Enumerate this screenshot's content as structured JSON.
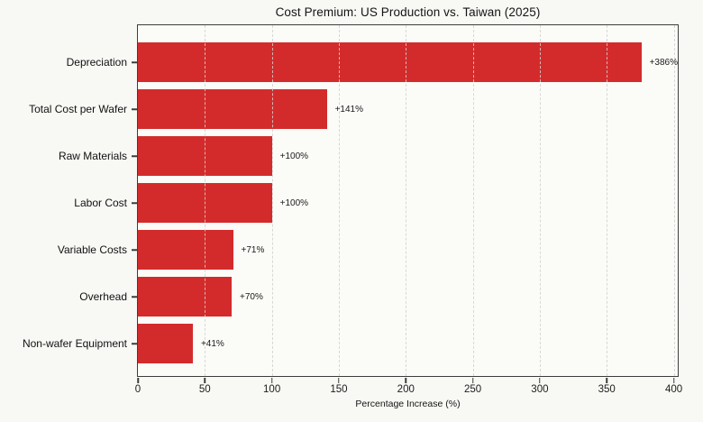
{
  "title": "Cost Premium: US Production vs. Taiwan (2025)",
  "chart_data": {
    "type": "bar",
    "orientation": "horizontal",
    "title": "Cost Premium: US Production vs. Taiwan (2025)",
    "categories": [
      "Depreciation",
      "Total Cost per Wafer",
      "Raw Materials",
      "Labor Cost",
      "Variable Costs",
      "Overhead",
      "Non-wafer Equipment"
    ],
    "values": [
      386,
      141,
      100,
      100,
      71,
      70,
      41
    ],
    "value_labels": [
      "+386%",
      "+141%",
      "+100%",
      "+100%",
      "+71%",
      "+70%",
      "+41%"
    ],
    "xlabel": "Percentage Increase (%)",
    "ylabel": "",
    "xticks": [
      0,
      50,
      100,
      150,
      200,
      250,
      300,
      350,
      400
    ],
    "xlim": [
      0,
      403
    ],
    "grid": "vertical-dashed",
    "legend": "none",
    "bar_color": "#d32b2b",
    "background_color": "#f8f8f5",
    "spine_color": "#3d3d3d",
    "grid_color": "#d0d0d0"
  }
}
